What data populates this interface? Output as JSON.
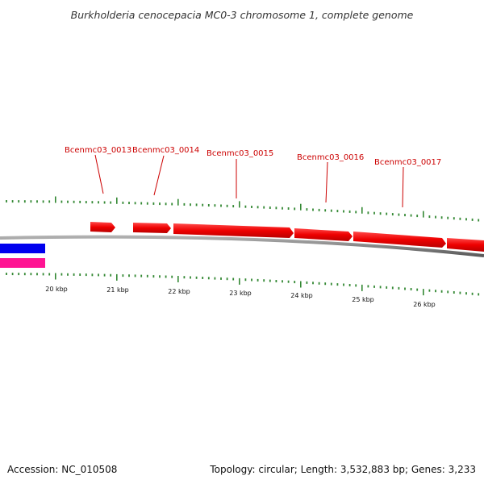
{
  "title": "Burkholderia cenocepacia MC0-3 chromosome 1, complete genome",
  "footer": {
    "accession": "Accession: NC_010508",
    "summary": "Topology: circular; Length: 3,532,883 bp; Genes: 3,233"
  },
  "colors": {
    "gene": "#ee0000",
    "gene_label": "#cc0000",
    "backbone": "#808080",
    "tick": "#338833",
    "track_blue": "#0000ee",
    "track_pink": "#ff1493"
  },
  "genes": [
    {
      "id": "gene-0013-unlabeled",
      "label": ""
    },
    {
      "id": "Bcenmc03_0013",
      "label": "Bcenmc03_0013"
    },
    {
      "id": "Bcenmc03_0014",
      "label": "Bcenmc03_0014"
    },
    {
      "id": "Bcenmc03_0015",
      "label": "Bcenmc03_0015"
    },
    {
      "id": "Bcenmc03_0016",
      "label": "Bcenmc03_0016"
    },
    {
      "id": "Bcenmc03_0017",
      "label": "Bcenmc03_0017"
    }
  ],
  "kbp_labels": [
    "20 kbp",
    "21 kbp",
    "22 kbp",
    "23 kbp",
    "24 kbp",
    "25 kbp",
    "26 kbp"
  ]
}
